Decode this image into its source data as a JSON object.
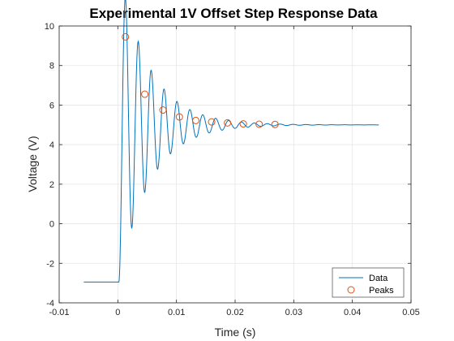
{
  "chart_data": {
    "type": "line",
    "title": "Experimental 1V Offset Step Response Data",
    "xlabel": "Time (s)",
    "ylabel": "Voltage (V)",
    "xlim": [
      -0.01,
      0.05
    ],
    "ylim": [
      -4,
      10
    ],
    "xticks": [
      -0.01,
      0,
      0.01,
      0.02,
      0.03,
      0.04,
      0.05
    ],
    "xtick_labels": [
      "-0.01",
      "0",
      "0.01",
      "0.02",
      "0.03",
      "0.04",
      "0.05"
    ],
    "yticks": [
      -4,
      -2,
      0,
      2,
      4,
      6,
      8,
      10
    ],
    "ytick_labels": [
      "-4",
      "-2",
      "0",
      "2",
      "4",
      "6",
      "8",
      "10"
    ],
    "grid": true,
    "legend_position": "bottom-right",
    "series": [
      {
        "name": "Data",
        "style": "line",
        "color": "#0072BD",
        "initial_value": -2.95,
        "step_time": 0.0002,
        "final_value": 5.0,
        "first_peak_time": 0.0013,
        "period": 0.0032,
        "decay_time_constant": 0.0052,
        "x_start": -0.0058,
        "x_end": 0.0445
      },
      {
        "name": "Peaks",
        "style": "marker",
        "color": "#D95319",
        "x": [
          0.0013,
          0.0046,
          0.0077,
          0.0105,
          0.0133,
          0.016,
          0.0187,
          0.0214,
          0.0241,
          0.0268
        ],
        "y": [
          9.45,
          6.55,
          5.75,
          5.4,
          5.22,
          5.15,
          5.1,
          5.05,
          5.03,
          5.02
        ]
      }
    ]
  }
}
